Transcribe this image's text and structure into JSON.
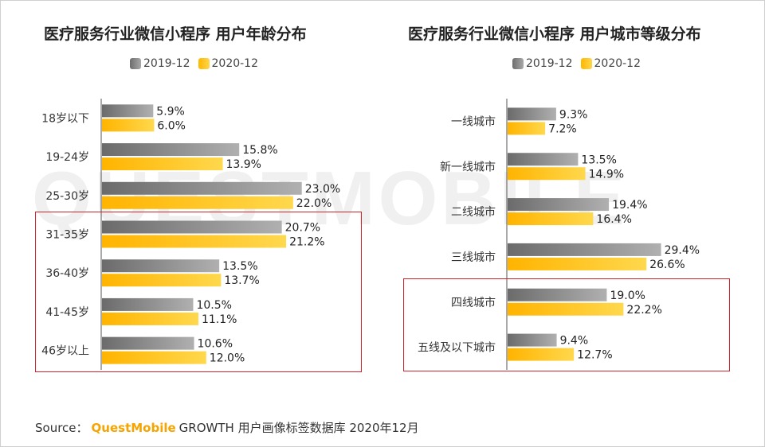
{
  "watermark": "QUESTMOBILE",
  "legend": {
    "s1": "2019-12",
    "s2": "2020-12"
  },
  "colors": {
    "s1": "#8a8a8a",
    "s2": "#ffc20e",
    "highlight": "#d0242b"
  },
  "source": {
    "prefix": "Source：",
    "brand": "QuestMobile",
    "rest": "GROWTH 用户画像标签数据库 2020年12月"
  },
  "chart_data": [
    {
      "type": "bar",
      "orientation": "horizontal",
      "title": "医疗服务行业微信小程序 用户年龄分布",
      "categories": [
        "18岁以下",
        "19-24岁",
        "25-30岁",
        "31-35岁",
        "36-40岁",
        "41-45岁",
        "46岁以上"
      ],
      "series": [
        {
          "name": "2019-12",
          "values": [
            5.9,
            15.8,
            23.0,
            20.7,
            13.5,
            10.5,
            10.6
          ],
          "labels": [
            "5.9%",
            "15.8%",
            "23.0%",
            "20.7%",
            "13.5%",
            "10.5%",
            "10.6%"
          ]
        },
        {
          "name": "2020-12",
          "values": [
            6.0,
            13.9,
            22.0,
            21.2,
            13.7,
            11.1,
            12.0
          ],
          "labels": [
            "6.0%",
            "13.9%",
            "22.0%",
            "21.2%",
            "13.7%",
            "11.1%",
            "12.0%"
          ]
        }
      ],
      "highlighted_categories": [
        "31-35岁",
        "36-40岁",
        "41-45岁",
        "46岁以上"
      ],
      "unit": "%"
    },
    {
      "type": "bar",
      "orientation": "horizontal",
      "title": "医疗服务行业微信小程序 用户城市等级分布",
      "categories": [
        "一线城市",
        "新一线城市",
        "二线城市",
        "三线城市",
        "四线城市",
        "五线及以下城市"
      ],
      "series": [
        {
          "name": "2019-12",
          "values": [
            9.3,
            13.5,
            19.4,
            29.4,
            19.0,
            9.4
          ],
          "labels": [
            "9.3%",
            "13.5%",
            "19.4%",
            "29.4%",
            "19.0%",
            "9.4%"
          ]
        },
        {
          "name": "2020-12",
          "values": [
            7.2,
            14.9,
            16.4,
            26.6,
            22.2,
            12.7
          ],
          "labels": [
            "7.2%",
            "14.9%",
            "16.4%",
            "26.6%",
            "22.2%",
            "12.7%"
          ]
        }
      ],
      "highlighted_categories": [
        "四线城市",
        "五线及以下城市"
      ],
      "unit": "%"
    }
  ]
}
